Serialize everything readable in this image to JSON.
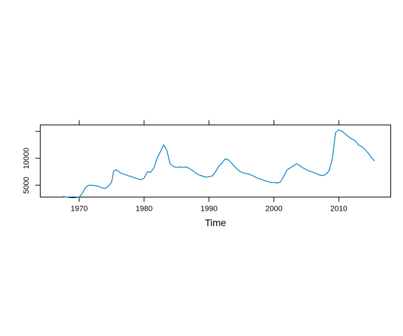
{
  "chart_data": {
    "type": "line",
    "title": "",
    "xlabel": "Time",
    "ylabel": "",
    "xlim": [
      1964,
      2018
    ],
    "ylim": [
      2800,
      16200
    ],
    "x_ticks": [
      1970,
      1980,
      1990,
      2000,
      2010
    ],
    "x_tick_labels": [
      "1970",
      "1980",
      "1990",
      "2000",
      "2010"
    ],
    "y_ticks": [
      5000,
      10000,
      15000
    ],
    "y_tick_labels": [
      "5000",
      "10000",
      ""
    ],
    "grid": false,
    "series": [
      {
        "name": "",
        "color": "#0080C0",
        "x": [
          1967.5,
          1968.0,
          1968.5,
          1969.0,
          1969.5,
          1970.0,
          1970.5,
          1971.0,
          1971.5,
          1972.0,
          1972.5,
          1973.0,
          1973.5,
          1974.0,
          1974.5,
          1975.0,
          1975.3,
          1975.7,
          1976.0,
          1976.5,
          1977.0,
          1977.5,
          1978.0,
          1978.5,
          1979.0,
          1979.5,
          1980.0,
          1980.5,
          1981.0,
          1981.5,
          1982.0,
          1982.5,
          1983.0,
          1983.5,
          1984.0,
          1984.5,
          1985.0,
          1985.5,
          1986.0,
          1986.5,
          1987.0,
          1987.5,
          1988.0,
          1988.5,
          1989.0,
          1989.5,
          1990.0,
          1990.5,
          1991.0,
          1991.5,
          1992.0,
          1992.5,
          1993.0,
          1993.5,
          1994.0,
          1994.5,
          1995.0,
          1995.5,
          1996.0,
          1996.5,
          1997.0,
          1997.5,
          1998.0,
          1998.5,
          1999.0,
          1999.5,
          2000.0,
          2000.5,
          2001.0,
          2001.5,
          2002.0,
          2002.5,
          2003.0,
          2003.5,
          2004.0,
          2004.5,
          2005.0,
          2005.5,
          2006.0,
          2006.5,
          2007.0,
          2007.5,
          2008.0,
          2008.5,
          2009.0,
          2009.5,
          2010.0,
          2010.5,
          2011.0,
          2011.5,
          2012.0,
          2012.5,
          2013.0,
          2013.5,
          2014.0,
          2014.5,
          2015.0,
          2015.5
        ],
        "y": [
          2900,
          2800,
          2700,
          2650,
          2700,
          2800,
          3500,
          4600,
          5000,
          5000,
          4900,
          4800,
          4500,
          4400,
          4800,
          5600,
          7600,
          7900,
          7600,
          7200,
          7000,
          6800,
          6600,
          6400,
          6200,
          6000,
          6300,
          7500,
          7400,
          8200,
          10000,
          11200,
          12500,
          11500,
          9000,
          8500,
          8300,
          8400,
          8300,
          8400,
          8100,
          7700,
          7200,
          6900,
          6700,
          6500,
          6600,
          6700,
          7500,
          8500,
          9100,
          9900,
          9700,
          9100,
          8400,
          7800,
          7400,
          7200,
          7100,
          6900,
          6600,
          6300,
          6100,
          5900,
          5700,
          5500,
          5500,
          5400,
          5600,
          6600,
          7800,
          8200,
          8600,
          9000,
          8600,
          8200,
          7900,
          7600,
          7400,
          7200,
          6900,
          6800,
          7000,
          7700,
          9900,
          14800,
          15300,
          15000,
          14500,
          14000,
          13600,
          13300,
          12500,
          12200,
          11700,
          11000,
          10200,
          9500
        ]
      }
    ]
  }
}
